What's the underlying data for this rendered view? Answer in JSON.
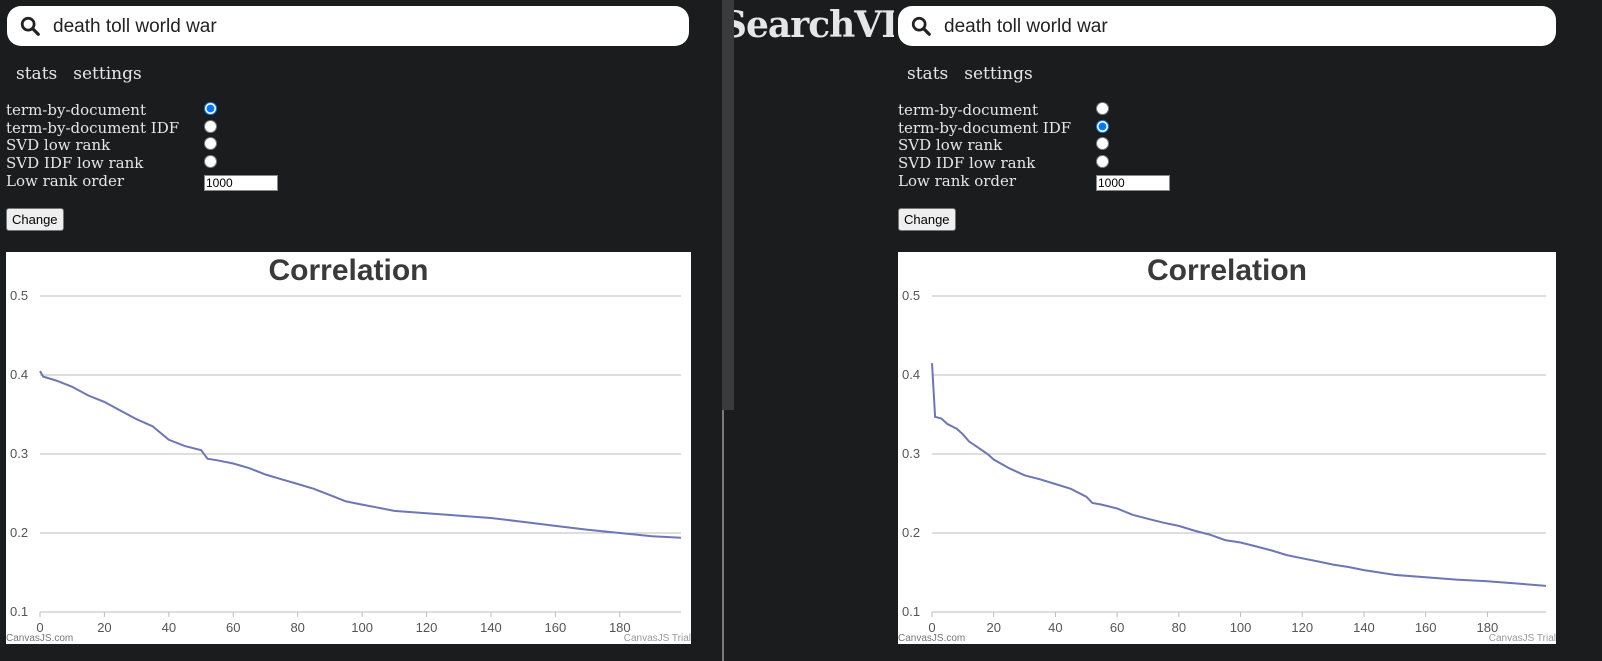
{
  "brand": "SearchVD",
  "panes": [
    {
      "search": {
        "value": "death toll world war",
        "placeholder": ""
      },
      "nav": [
        "stats",
        "settings"
      ],
      "options": [
        {
          "label": "term-by-document",
          "checked": true
        },
        {
          "label": "term-by-document IDF",
          "checked": false
        },
        {
          "label": "SVD low rank",
          "checked": false
        },
        {
          "label": "SVD IDF low rank",
          "checked": false
        }
      ],
      "low_rank": {
        "label": "Low rank order",
        "value": "1000"
      },
      "change_label": "Change",
      "chart_data": {
        "type": "line",
        "title": "Correlation",
        "xlabel": "",
        "ylabel": "",
        "xlim": [
          0,
          199
        ],
        "ylim": [
          0.1,
          0.5
        ],
        "xticks": [
          0,
          20,
          40,
          60,
          80,
          100,
          120,
          140,
          160,
          180
        ],
        "yticks": [
          0.1,
          0.2,
          0.3,
          0.4,
          0.5
        ],
        "grid": true,
        "series": [
          {
            "color": "#6b77b6",
            "points": [
              [
                0,
                0.405
              ],
              [
                1,
                0.398
              ],
              [
                5,
                0.393
              ],
              [
                10,
                0.385
              ],
              [
                15,
                0.374
              ],
              [
                20,
                0.366
              ],
              [
                25,
                0.355
              ],
              [
                30,
                0.344
              ],
              [
                35,
                0.335
              ],
              [
                40,
                0.318
              ],
              [
                45,
                0.31
              ],
              [
                50,
                0.305
              ],
              [
                52,
                0.294
              ],
              [
                55,
                0.292
              ],
              [
                60,
                0.288
              ],
              [
                65,
                0.282
              ],
              [
                70,
                0.274
              ],
              [
                75,
                0.268
              ],
              [
                80,
                0.262
              ],
              [
                85,
                0.256
              ],
              [
                90,
                0.248
              ],
              [
                95,
                0.24
              ],
              [
                100,
                0.236
              ],
              [
                105,
                0.232
              ],
              [
                110,
                0.228
              ],
              [
                120,
                0.225
              ],
              [
                130,
                0.222
              ],
              [
                140,
                0.219
              ],
              [
                150,
                0.214
              ],
              [
                160,
                0.209
              ],
              [
                170,
                0.204
              ],
              [
                180,
                0.2
              ],
              [
                190,
                0.196
              ],
              [
                199,
                0.194
              ]
            ]
          }
        ],
        "credit": "CanvasJS.com",
        "trial": "CanvasJS Trial"
      }
    },
    {
      "search": {
        "value": "death toll world war",
        "placeholder": ""
      },
      "nav": [
        "stats",
        "settings"
      ],
      "options": [
        {
          "label": "term-by-document",
          "checked": false
        },
        {
          "label": "term-by-document IDF",
          "checked": true
        },
        {
          "label": "SVD low rank",
          "checked": false
        },
        {
          "label": "SVD IDF low rank",
          "checked": false
        }
      ],
      "low_rank": {
        "label": "Low rank order",
        "value": "1000"
      },
      "change_label": "Change",
      "chart_data": {
        "type": "line",
        "title": "Correlation",
        "xlabel": "",
        "ylabel": "",
        "xlim": [
          0,
          199
        ],
        "ylim": [
          0.1,
          0.5
        ],
        "xticks": [
          0,
          20,
          40,
          60,
          80,
          100,
          120,
          140,
          160,
          180
        ],
        "yticks": [
          0.1,
          0.2,
          0.3,
          0.4,
          0.5
        ],
        "grid": true,
        "series": [
          {
            "color": "#6b77b6",
            "points": [
              [
                0,
                0.415
              ],
              [
                1,
                0.347
              ],
              [
                3,
                0.345
              ],
              [
                5,
                0.338
              ],
              [
                8,
                0.332
              ],
              [
                10,
                0.325
              ],
              [
                12,
                0.316
              ],
              [
                15,
                0.308
              ],
              [
                18,
                0.3
              ],
              [
                20,
                0.293
              ],
              [
                25,
                0.282
              ],
              [
                30,
                0.273
              ],
              [
                35,
                0.268
              ],
              [
                40,
                0.262
              ],
              [
                45,
                0.256
              ],
              [
                50,
                0.246
              ],
              [
                52,
                0.238
              ],
              [
                55,
                0.236
              ],
              [
                60,
                0.231
              ],
              [
                65,
                0.223
              ],
              [
                70,
                0.218
              ],
              [
                75,
                0.213
              ],
              [
                80,
                0.209
              ],
              [
                85,
                0.203
              ],
              [
                90,
                0.198
              ],
              [
                95,
                0.191
              ],
              [
                100,
                0.188
              ],
              [
                105,
                0.183
              ],
              [
                110,
                0.178
              ],
              [
                115,
                0.172
              ],
              [
                120,
                0.168
              ],
              [
                125,
                0.164
              ],
              [
                130,
                0.16
              ],
              [
                135,
                0.157
              ],
              [
                140,
                0.153
              ],
              [
                145,
                0.15
              ],
              [
                150,
                0.147
              ],
              [
                160,
                0.144
              ],
              [
                170,
                0.141
              ],
              [
                180,
                0.139
              ],
              [
                190,
                0.136
              ],
              [
                199,
                0.133
              ]
            ]
          }
        ],
        "credit": "CanvasJS.com",
        "trial": "CanvasJS Trial"
      }
    }
  ]
}
